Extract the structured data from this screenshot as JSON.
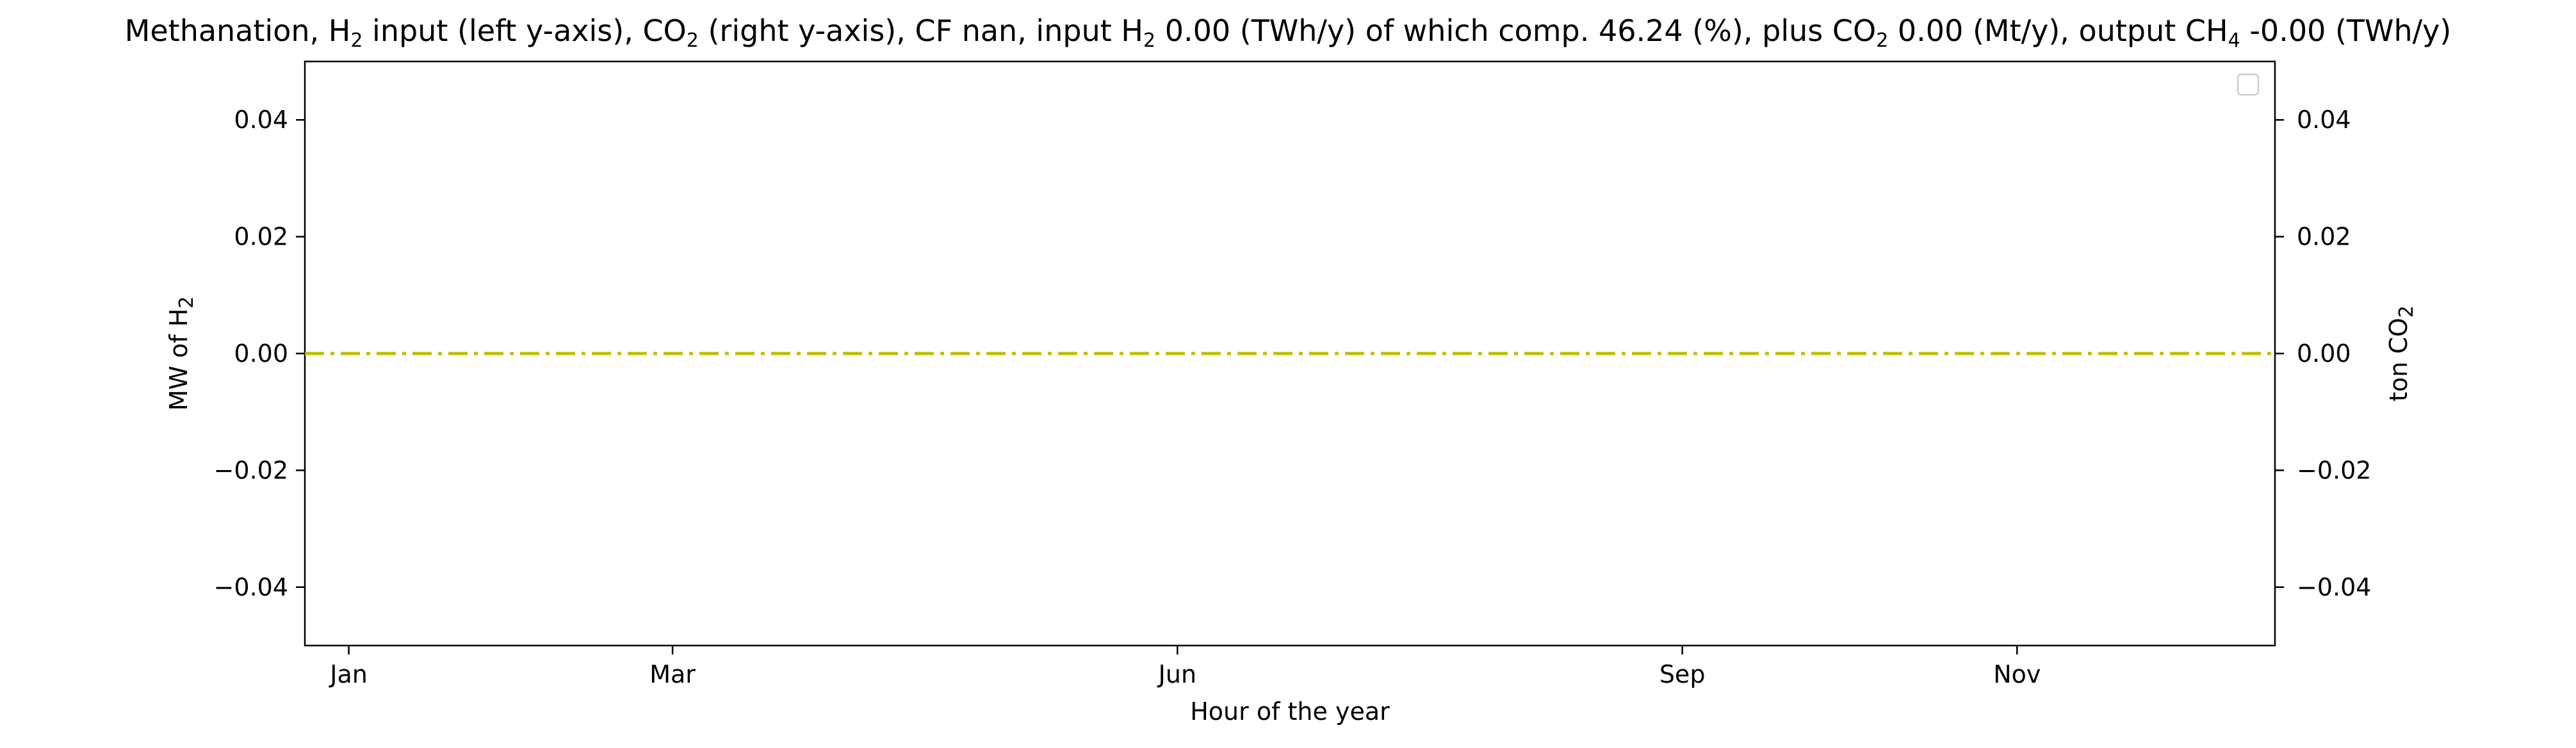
{
  "chart_data": {
    "type": "line",
    "title": {
      "parts": [
        {
          "text": "Methanation, H"
        },
        {
          "text": "2",
          "sub": true
        },
        {
          "text": " input (left y-axis), CO"
        },
        {
          "text": "2",
          "sub": true
        },
        {
          "text": " (right y-axis), CF nan, input H"
        },
        {
          "text": "2",
          "sub": true
        },
        {
          "text": " 0.00 (TWh/y) of which comp. 46.24 (%), plus CO"
        },
        {
          "text": "2",
          "sub": true
        },
        {
          "text": " 0.00 (Mt/y), output CH"
        },
        {
          "text": "4",
          "sub": true
        },
        {
          "text": " -0.00 (TWh/y)"
        }
      ]
    },
    "xlabel": "Hour of the year",
    "ylabel_left": {
      "parts": [
        {
          "text": "MW of H"
        },
        {
          "text": "2",
          "sub": true
        }
      ]
    },
    "ylabel_right": {
      "parts": [
        {
          "text": "ton CO"
        },
        {
          "text": "2",
          "sub": true
        }
      ]
    },
    "x_axis": {
      "type": "date",
      "range": [
        "2021-12-24",
        "2022-12-18"
      ],
      "ticks": [
        {
          "value": "2022-01-01",
          "label": "Jan"
        },
        {
          "value": "2022-03-01",
          "label": "Mar"
        },
        {
          "value": "2022-06-01",
          "label": "Jun"
        },
        {
          "value": "2022-09-01",
          "label": "Sep"
        },
        {
          "value": "2022-11-01",
          "label": "Nov"
        }
      ]
    },
    "y_left": {
      "ylim": [
        -0.05,
        0.05
      ],
      "ticks": [
        {
          "value": 0.04,
          "label": "0.04"
        },
        {
          "value": 0.02,
          "label": "0.02"
        },
        {
          "value": 0.0,
          "label": "0.00"
        },
        {
          "value": -0.02,
          "label": "−0.02"
        },
        {
          "value": -0.04,
          "label": "−0.04"
        }
      ]
    },
    "y_right": {
      "ylim": [
        -0.05,
        0.05
      ],
      "ticks": [
        {
          "value": 0.04,
          "label": "0.04"
        },
        {
          "value": 0.02,
          "label": "0.02"
        },
        {
          "value": 0.0,
          "label": "0.00"
        },
        {
          "value": -0.02,
          "label": "−0.02"
        },
        {
          "value": -0.04,
          "label": "−0.04"
        }
      ]
    },
    "series": [
      {
        "axis": "left",
        "color": "#bfbf00",
        "dash": "dash-dot",
        "x": [
          "2021-12-24",
          "2022-12-18"
        ],
        "y": [
          0.0,
          0.0
        ]
      }
    ],
    "grid": false,
    "legend": {
      "placement": "upper right",
      "entries": []
    }
  }
}
